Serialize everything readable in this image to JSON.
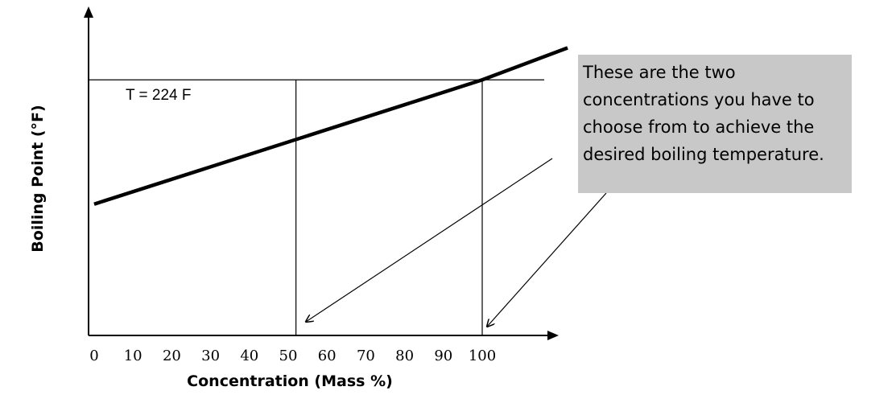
{
  "chart_data": {
    "type": "line",
    "title": "",
    "xlabel": "Concentration (Mass %)",
    "ylabel": "Boiling Point (°F)",
    "x_ticks": [
      "0",
      "10",
      "20",
      "30",
      "40",
      "50",
      "60",
      "70",
      "80",
      "90",
      "100"
    ],
    "xlim": [
      0,
      120
    ],
    "ylim": [
      0,
      100
    ],
    "series": [
      {
        "style": "solid",
        "x": [
          0,
          100,
          122
        ],
        "y": [
          46,
          79,
          87.5
        ]
      },
      {
        "style": "dashed",
        "x": [
          0,
          100
        ],
        "y": [
          46,
          79
        ]
      }
    ],
    "reference_line": {
      "label": "T = 224 F",
      "y": 79
    },
    "intersections": [
      {
        "x": 52,
        "y": 79
      },
      {
        "x": 100,
        "y": 79
      }
    ],
    "annotation": {
      "lines": [
        "These are the two",
        "concentrations you have to",
        "choose from to achieve the",
        "desired boiling temperature."
      ]
    }
  }
}
